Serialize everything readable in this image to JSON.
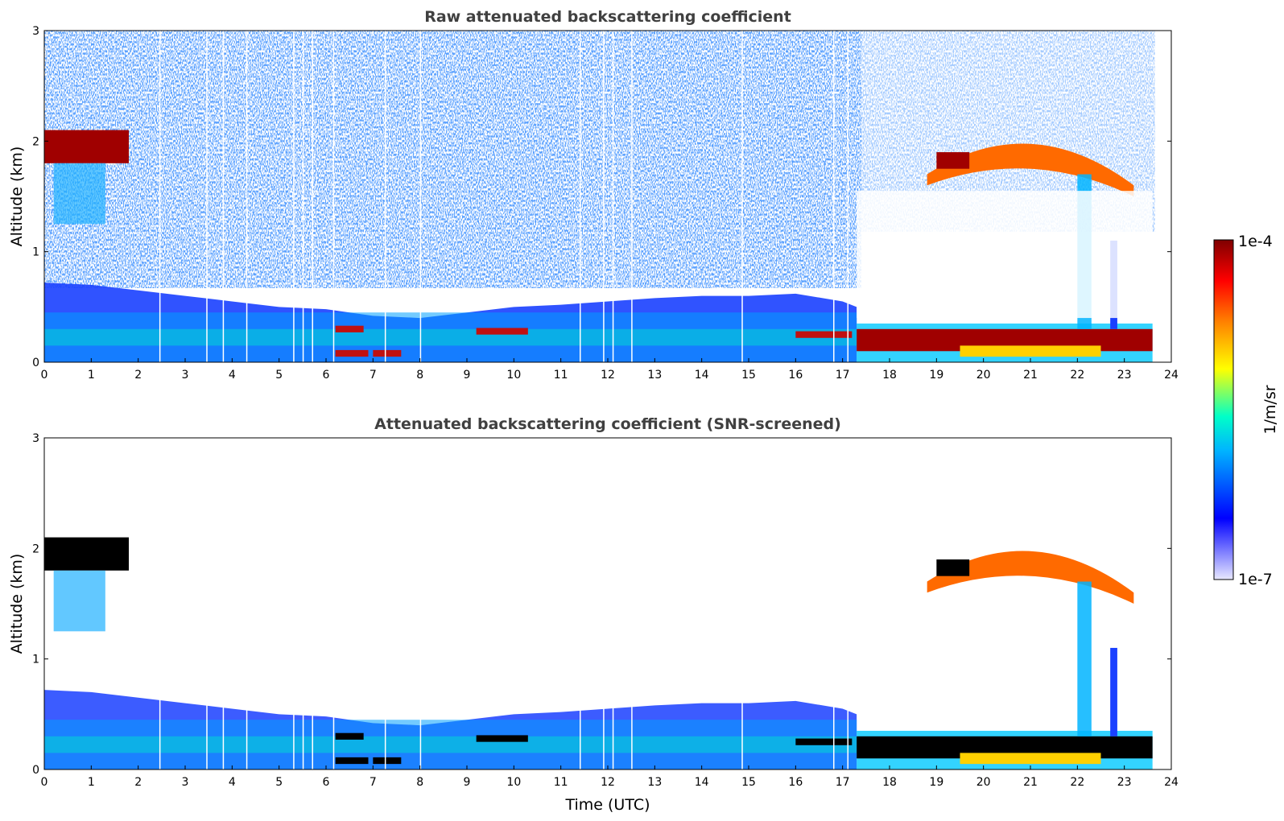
{
  "colormap": [
    "#ffffff",
    "#0000ff",
    "#00c8ff",
    "#00ffc0",
    "#ffff00",
    "#ff8000",
    "#ff0000",
    "#7f0000"
  ],
  "colorbar": {
    "top_label": "1e-4",
    "bottom_label": "1e-7",
    "unit_label": "1/m/sr"
  },
  "chart_data": [
    {
      "type": "heatmap",
      "title": "Raw attenuated backscattering coefficient",
      "xlabel": "",
      "ylabel": "Altitude (km)",
      "xlim": [
        0,
        24
      ],
      "ylim": [
        0,
        3
      ],
      "xticks": [
        "0",
        "1",
        "2",
        "3",
        "4",
        "5",
        "6",
        "7",
        "8",
        "9",
        "10",
        "11",
        "12",
        "13",
        "14",
        "15",
        "16",
        "17",
        "18",
        "19",
        "20",
        "21",
        "22",
        "23",
        "24"
      ],
      "yticks": [
        "0",
        "1",
        "2",
        "3"
      ],
      "features": [
        {
          "name": "boundary layer",
          "t_start": 0,
          "t_end": 17.3,
          "top_km": [
            0.72,
            0.7,
            0.65,
            0.6,
            0.55,
            0.5,
            0.48,
            0.42,
            0.4,
            0.45,
            0.5,
            0.52,
            0.55,
            0.58,
            0.6,
            0.6,
            0.62,
            0.55
          ]
        },
        {
          "name": "morning cloud",
          "t_start": 0,
          "t_end": 1.8,
          "alt_km": 1.95,
          "intensity": "high"
        },
        {
          "name": "evening cloud",
          "t_start": 18.8,
          "t_end": 23.2,
          "alt_km": 1.85,
          "intensity": "high"
        },
        {
          "name": "low cloud layer",
          "t_start": 17.3,
          "t_end": 23.6,
          "alt_km": 0.2,
          "intensity": "high"
        }
      ]
    },
    {
      "type": "heatmap",
      "title": "Attenuated backscattering coefficient (SNR-screened)",
      "xlabel": "Time (UTC)",
      "ylabel": "Altitude (km)",
      "xlim": [
        0,
        24
      ],
      "ylim": [
        0,
        3
      ],
      "xticks": [
        "0",
        "1",
        "2",
        "3",
        "4",
        "5",
        "6",
        "7",
        "8",
        "9",
        "10",
        "11",
        "12",
        "13",
        "14",
        "15",
        "16",
        "17",
        "18",
        "19",
        "20",
        "21",
        "22",
        "23",
        "24"
      ],
      "yticks": [
        "0",
        "1",
        "2",
        "3"
      ]
    }
  ]
}
